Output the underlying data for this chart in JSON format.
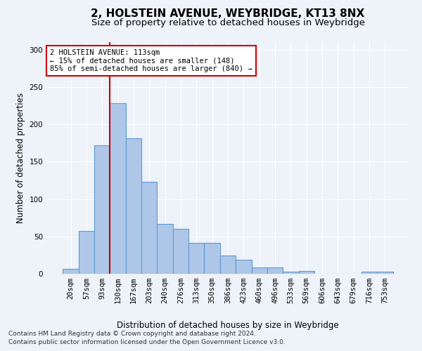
{
  "title": "2, HOLSTEIN AVENUE, WEYBRIDGE, KT13 8NX",
  "subtitle": "Size of property relative to detached houses in Weybridge",
  "xlabel": "Distribution of detached houses by size in Weybridge",
  "ylabel": "Number of detached properties",
  "bar_labels": [
    "20sqm",
    "57sqm",
    "93sqm",
    "130sqm",
    "167sqm",
    "203sqm",
    "240sqm",
    "276sqm",
    "313sqm",
    "350sqm",
    "386sqm",
    "423sqm",
    "460sqm",
    "496sqm",
    "533sqm",
    "569sqm",
    "606sqm",
    "643sqm",
    "679sqm",
    "716sqm",
    "753sqm"
  ],
  "bar_values": [
    7,
    57,
    172,
    228,
    181,
    123,
    67,
    60,
    41,
    41,
    24,
    19,
    8,
    8,
    3,
    4,
    0,
    0,
    0,
    3,
    3
  ],
  "bar_color": "#aec6e8",
  "bar_edgecolor": "#5a9ad4",
  "bar_linewidth": 0.8,
  "vline_color": "#cc0000",
  "annotation_line1": "2 HOLSTEIN AVENUE: 113sqm",
  "annotation_line2": "← 15% of detached houses are smaller (148)",
  "annotation_line3": "85% of semi-detached houses are larger (840) →",
  "annotation_box_facecolor": "#ffffff",
  "annotation_box_edgecolor": "#cc0000",
  "ylim": [
    0,
    310
  ],
  "yticks": [
    0,
    50,
    100,
    150,
    200,
    250,
    300
  ],
  "footnote1": "Contains HM Land Registry data © Crown copyright and database right 2024.",
  "footnote2": "Contains public sector information licensed under the Open Government Licence v3.0.",
  "background_color": "#eef2f9",
  "grid_color": "#ffffff",
  "title_fontsize": 11,
  "subtitle_fontsize": 9.5,
  "xlabel_fontsize": 8.5,
  "ylabel_fontsize": 8.5,
  "tick_fontsize": 7.5,
  "annotation_fontsize": 7.5,
  "footnote_fontsize": 6.5
}
